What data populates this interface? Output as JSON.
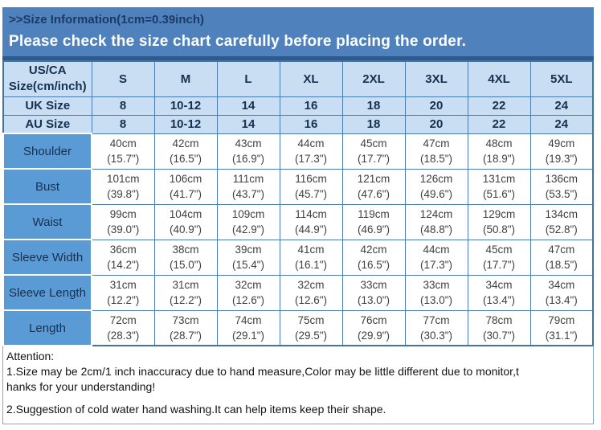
{
  "banner": {
    "title": ">>Size Information(1cm=0.39inch)",
    "subtitle": "Please check the size chart carefully before placing the order."
  },
  "table": {
    "header": {
      "label_line1": "US/CA",
      "label_line2": "Size(cm/inch)",
      "sizes": [
        "S",
        "M",
        "L",
        "XL",
        "2XL",
        "3XL",
        "4XL",
        "5XL"
      ]
    },
    "size_rows": [
      {
        "label": "UK Size",
        "values": [
          "8",
          "10-12",
          "14",
          "16",
          "18",
          "20",
          "22",
          "24"
        ]
      },
      {
        "label": "AU Size",
        "values": [
          "8",
          "10-12",
          "14",
          "16",
          "18",
          "20",
          "22",
          "24"
        ]
      }
    ],
    "measure_rows": [
      {
        "label": "Shoulder",
        "cm": [
          "40cm",
          "42cm",
          "43cm",
          "44cm",
          "45cm",
          "47cm",
          "48cm",
          "49cm"
        ],
        "inch": [
          "(15.7\")",
          "(16.5\")",
          "(16.9\")",
          "(17.3\")",
          "(17.7\")",
          "(18.5\")",
          "(18.9\")",
          "(19.3\")"
        ]
      },
      {
        "label": "Bust",
        "cm": [
          "101cm",
          "106cm",
          "111cm",
          "116cm",
          "121cm",
          "126cm",
          "131cm",
          "136cm"
        ],
        "inch": [
          "(39.8\")",
          "(41.7\")",
          "(43.7\")",
          "(45.7\")",
          "(47.6\")",
          "(49.6\")",
          "(51.6\")",
          "(53.5\")"
        ]
      },
      {
        "label": "Waist",
        "cm": [
          "99cm",
          "104cm",
          "109cm",
          "114cm",
          "119cm",
          "124cm",
          "129cm",
          "134cm"
        ],
        "inch": [
          "(39.0\")",
          "(40.9\")",
          "(42.9\")",
          "(44.9\")",
          "(46.9\")",
          "(48.8\")",
          "(50.8\")",
          "(52.8\")"
        ]
      },
      {
        "label": "Sleeve Width",
        "cm": [
          "36cm",
          "38cm",
          "39cm",
          "41cm",
          "42cm",
          "44cm",
          "45cm",
          "47cm"
        ],
        "inch": [
          "(14.2\")",
          "(15.0\")",
          "(15.4\")",
          "(16.1\")",
          "(16.5\")",
          "(17.3\")",
          "(17.7\")",
          "(18.5\")"
        ]
      },
      {
        "label": "Sleeve Length",
        "cm": [
          "31cm",
          "31cm",
          "32cm",
          "32cm",
          "33cm",
          "33cm",
          "34cm",
          "34cm"
        ],
        "inch": [
          "(12.2\")",
          "(12.2\")",
          "(12.6\")",
          "(12.6\")",
          "(13.0\")",
          "(13.0\")",
          "(13.4\")",
          "(13.4\")"
        ]
      },
      {
        "label": "Length",
        "cm": [
          "72cm",
          "73cm",
          "74cm",
          "75cm",
          "76cm",
          "77cm",
          "78cm",
          "79cm"
        ],
        "inch": [
          "(28.3\")",
          "(28.7\")",
          "(29.1\")",
          "(29.5\")",
          "(29.9\")",
          "(30.3\")",
          "(30.7\")",
          "(31.1\")"
        ]
      }
    ]
  },
  "attention": {
    "lines": [
      "Attention:",
      "1.Size may be 2cm/1 inch inaccuracy due to hand measure,Color may be little different due to monitor,t",
      "hanks for your understanding!",
      "2.Suggestion of cold water hand washing.It can help items keep their shape."
    ]
  },
  "colors": {
    "banner_blue": "#4f81bd",
    "banner_title_text": "#1b3a66",
    "header_light_blue": "#c9def2",
    "label_blue": "#5b9bd5",
    "border_blue": "#4a7cb5",
    "dark_navy_text": "#16304f",
    "data_text": "#3f3f3f",
    "attention_border": "#8aa3bd"
  }
}
